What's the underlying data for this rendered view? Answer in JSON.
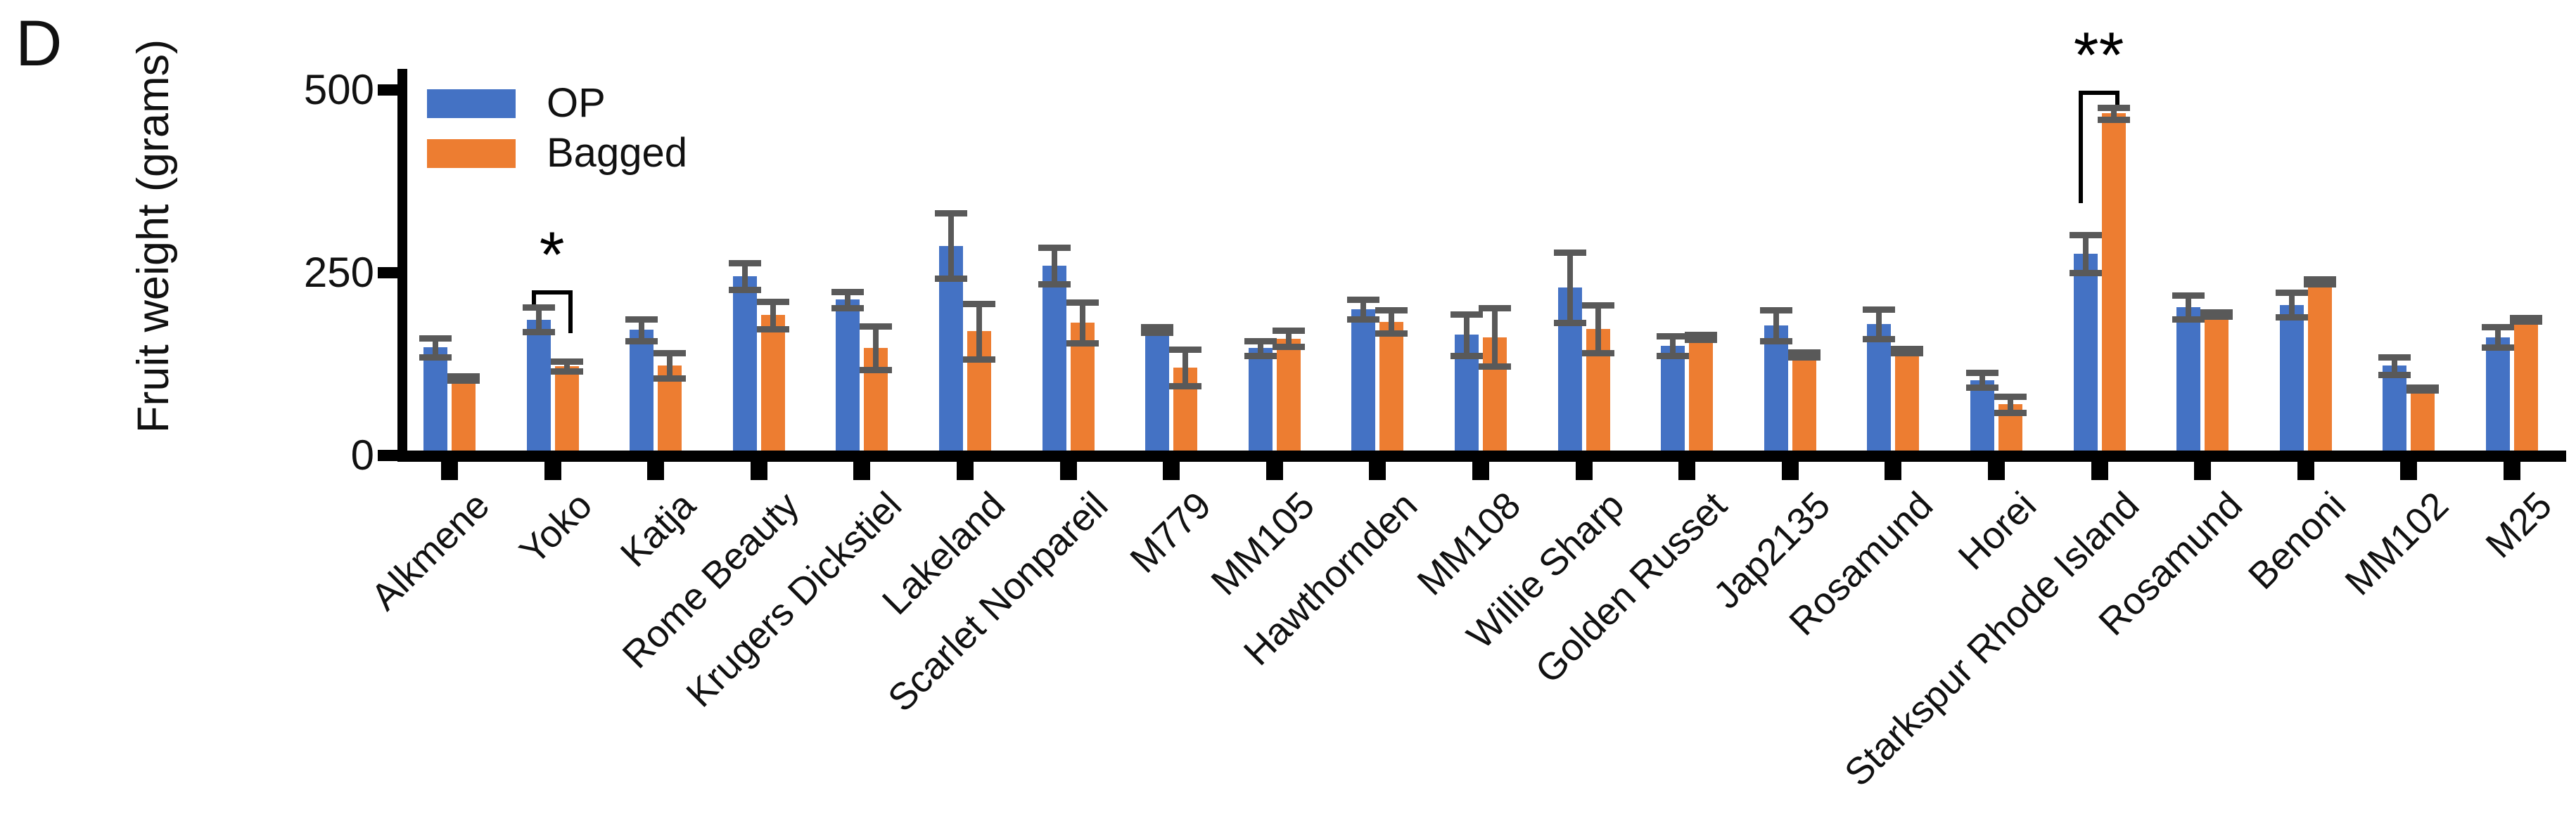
{
  "figure": {
    "panel_label": "D"
  },
  "colors": {
    "op": "#4472C4",
    "bagged": "#ED7D31",
    "error_bar": "#595959",
    "axis": "#000000",
    "text": "#111111"
  },
  "chart_data": {
    "type": "bar",
    "title": "",
    "xlabel": "",
    "ylabel": "Fruit weight (grams)",
    "ylim": [
      0,
      500
    ],
    "yticks": [
      0,
      250,
      500
    ],
    "grid": false,
    "legend_position": "top-left-inside",
    "categories": [
      "Alkmene",
      "Yoko",
      "Katja",
      "Rome Beauty",
      "Krugers Dickstiel",
      "Lakeland",
      "Scarlet Nonpareil",
      "M779",
      "MM105",
      "Hawthornden",
      "MM108",
      "Willie Sharp",
      "Golden Russet",
      "Jap2135",
      "Rosamund",
      "Horei",
      "Starkspur Rhode Island",
      "Rosamund",
      "Benoni",
      "MM102",
      "M25"
    ],
    "series": [
      {
        "name": "OP",
        "color": "#4472C4",
        "values": [
          148,
          186,
          172,
          245,
          213,
          287,
          260,
          172,
          147,
          200,
          165,
          230,
          150,
          178,
          180,
          103,
          276,
          203,
          206,
          123,
          162
        ],
        "errors": [
          13,
          17,
          15,
          18,
          11,
          45,
          25,
          4,
          10,
          13,
          28,
          48,
          13,
          21,
          20,
          10,
          26,
          16,
          17,
          12,
          14
        ]
      },
      {
        "name": "Bagged",
        "color": "#ED7D31",
        "values": [
          106,
          122,
          123,
          192,
          147,
          170,
          182,
          120,
          160,
          183,
          162,
          173,
          162,
          138,
          143,
          70,
          468,
          193,
          238,
          91,
          186
        ],
        "errors": [
          3,
          7,
          17,
          19,
          30,
          38,
          28,
          25,
          11,
          16,
          40,
          33,
          3,
          3,
          3,
          11,
          8,
          3,
          3,
          2,
          2
        ]
      }
    ],
    "annotations": [
      {
        "category": "Yoko",
        "label": "*"
      },
      {
        "category": "Starkspur Rhode Island",
        "label": "**"
      }
    ]
  }
}
